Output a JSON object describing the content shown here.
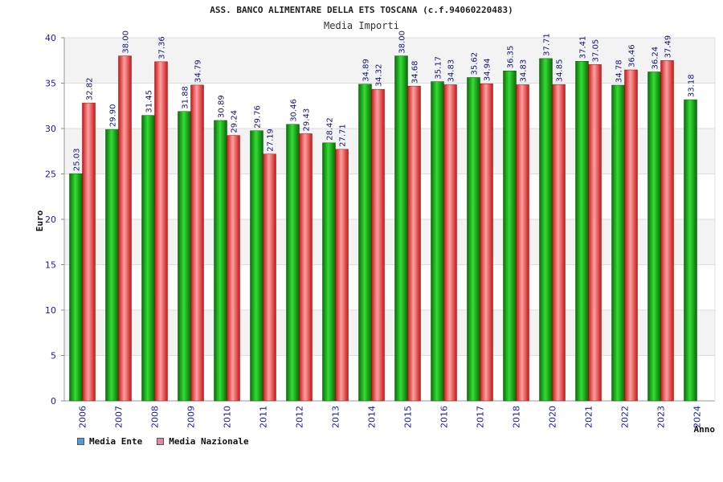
{
  "chart_data": {
    "type": "bar",
    "title": "ASS. BANCO ALIMENTARE DELLA ETS TOSCANA (c.f.94060220483)",
    "subtitle": "Media Importi",
    "xlabel": "Anno",
    "ylabel": "Euro",
    "ylim": [
      0,
      40
    ],
    "yticks": [
      0,
      5,
      10,
      15,
      20,
      25,
      30,
      35,
      40
    ],
    "categories": [
      "2006",
      "2007",
      "2008",
      "2009",
      "2010",
      "2011",
      "2012",
      "2013",
      "2014",
      "2015",
      "2016",
      "2017",
      "2018",
      "2020",
      "2021",
      "2022",
      "2023",
      "2024"
    ],
    "series": [
      {
        "name": "Media Ente",
        "color": "#00aa00",
        "values": [
          25.03,
          29.9,
          31.45,
          31.88,
          30.89,
          29.76,
          30.46,
          28.42,
          34.89,
          38.0,
          35.17,
          35.62,
          36.35,
          37.71,
          37.41,
          34.78,
          36.24,
          33.18
        ],
        "labels": [
          "25.03",
          "29.90",
          "31.45",
          "31.88",
          "30.89",
          "29.76",
          "30.46",
          "28.42",
          "34.89",
          "38.00",
          "35.17",
          "35.62",
          "36.35",
          "37.71",
          "37.41",
          "34.78",
          "36.24",
          "33.18"
        ]
      },
      {
        "name": "Media Nazionale",
        "color": "#dd2222",
        "values": [
          32.82,
          38.0,
          37.36,
          34.79,
          29.24,
          27.19,
          29.43,
          27.71,
          34.32,
          34.68,
          34.83,
          34.94,
          34.83,
          34.85,
          37.05,
          36.46,
          37.49,
          null
        ],
        "labels": [
          "32.82",
          "38.00",
          "37.36",
          "34.79",
          "29.24",
          "27.19",
          "29.43",
          "27.71",
          "34.32",
          "34.68",
          "34.83",
          "34.94",
          "34.83",
          "34.85",
          "37.05",
          "36.46",
          "37.49",
          null
        ]
      }
    ],
    "legend": [
      "Media Ente",
      "Media Nazionale"
    ],
    "legend_colors": [
      "#5599dd",
      "#dd88aa"
    ],
    "legend_position": "bottom-left",
    "grid": true
  }
}
